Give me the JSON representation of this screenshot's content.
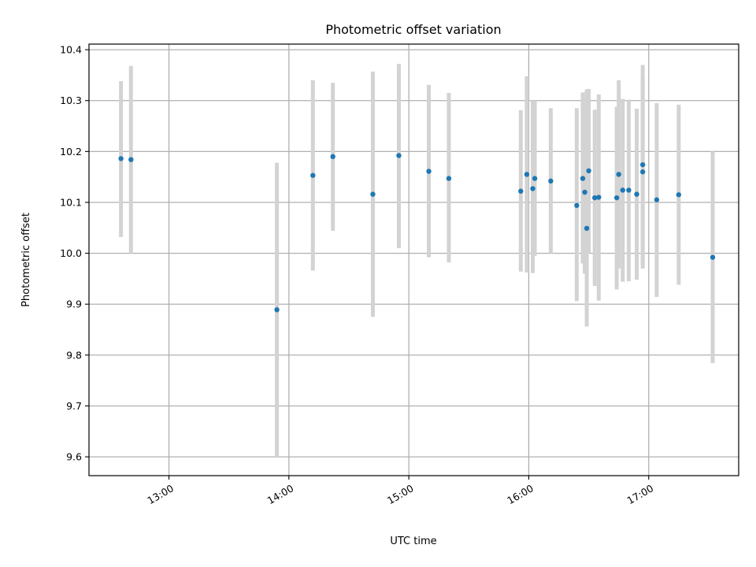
{
  "chart_data": {
    "type": "scatter",
    "title": "Photometric offset variation",
    "xlabel": "UTC time",
    "ylabel": "Photometric offset",
    "x_tick_labels": [
      "13:00",
      "14:00",
      "15:00",
      "16:00",
      "17:00"
    ],
    "y_tick_labels": [
      "9.6",
      "9.7",
      "9.8",
      "9.9",
      "10.0",
      "10.1",
      "10.2",
      "10.3",
      "10.4"
    ],
    "xlim": [
      "12:20",
      "17:45"
    ],
    "ylim": [
      9.563,
      10.411
    ],
    "grid": true,
    "colors": {
      "points": "#1f77b4",
      "error_bars": "#d3d3d3",
      "grid": "#b0b0b0"
    },
    "points": [
      {
        "x": "12:36",
        "y": 10.186,
        "ylow": 10.032,
        "yhigh": 10.338
      },
      {
        "x": "12:41",
        "y": 10.184,
        "ylow": 10.0,
        "yhigh": 10.368
      },
      {
        "x": "13:54",
        "y": 9.889,
        "ylow": 9.6,
        "yhigh": 10.178
      },
      {
        "x": "14:12",
        "y": 10.153,
        "ylow": 9.966,
        "yhigh": 10.34
      },
      {
        "x": "14:22",
        "y": 10.19,
        "ylow": 10.044,
        "yhigh": 10.335
      },
      {
        "x": "14:42",
        "y": 10.116,
        "ylow": 9.875,
        "yhigh": 10.357
      },
      {
        "x": "14:55",
        "y": 10.192,
        "ylow": 10.01,
        "yhigh": 10.372
      },
      {
        "x": "15:10",
        "y": 10.161,
        "ylow": 9.992,
        "yhigh": 10.331
      },
      {
        "x": "15:20",
        "y": 10.147,
        "ylow": 9.982,
        "yhigh": 10.315
      },
      {
        "x": "15:56",
        "y": 10.122,
        "ylow": 9.964,
        "yhigh": 10.281
      },
      {
        "x": "15:59",
        "y": 10.155,
        "ylow": 9.962,
        "yhigh": 10.348
      },
      {
        "x": "16:02",
        "y": 10.127,
        "ylow": 9.961,
        "yhigh": 10.3
      },
      {
        "x": "16:03",
        "y": 10.147,
        "ylow": 9.995,
        "yhigh": 10.3
      },
      {
        "x": "16:11",
        "y": 10.142,
        "ylow": 10.0,
        "yhigh": 10.285
      },
      {
        "x": "16:24",
        "y": 10.094,
        "ylow": 9.906,
        "yhigh": 10.285
      },
      {
        "x": "16:27",
        "y": 10.147,
        "ylow": 9.98,
        "yhigh": 10.316
      },
      {
        "x": "16:28",
        "y": 10.12,
        "ylow": 9.96,
        "yhigh": 10.285
      },
      {
        "x": "16:29",
        "y": 10.049,
        "ylow": 9.856,
        "yhigh": 10.322
      },
      {
        "x": "16:30",
        "y": 10.162,
        "ylow": 10.0,
        "yhigh": 10.323
      },
      {
        "x": "16:33",
        "y": 10.109,
        "ylow": 9.936,
        "yhigh": 10.282
      },
      {
        "x": "16:35",
        "y": 10.11,
        "ylow": 9.907,
        "yhigh": 10.312
      },
      {
        "x": "16:44",
        "y": 10.109,
        "ylow": 9.929,
        "yhigh": 10.288
      },
      {
        "x": "16:45",
        "y": 10.155,
        "ylow": 9.97,
        "yhigh": 10.34
      },
      {
        "x": "16:47",
        "y": 10.124,
        "ylow": 9.944,
        "yhigh": 10.303
      },
      {
        "x": "16:50",
        "y": 10.124,
        "ylow": 9.945,
        "yhigh": 10.302
      },
      {
        "x": "16:54",
        "y": 10.116,
        "ylow": 9.948,
        "yhigh": 10.284
      },
      {
        "x": "16:57",
        "y": 10.174,
        "ylow": 9.98,
        "yhigh": 10.37
      },
      {
        "x": "16:57",
        "y": 10.16,
        "ylow": 9.97,
        "yhigh": 10.35
      },
      {
        "x": "17:04",
        "y": 10.105,
        "ylow": 9.914,
        "yhigh": 10.295
      },
      {
        "x": "17:15",
        "y": 10.115,
        "ylow": 9.938,
        "yhigh": 10.292
      },
      {
        "x": "17:32",
        "y": 9.992,
        "ylow": 9.784,
        "yhigh": 10.2
      }
    ]
  }
}
